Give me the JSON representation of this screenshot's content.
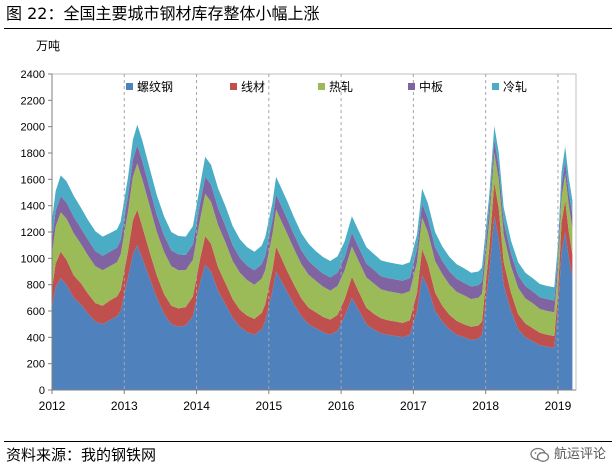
{
  "figure": {
    "title": "图 22：全国主要城市钢材库存整体小幅上涨",
    "source": "资料来源：我的钢铁网",
    "watermark": "航运评论",
    "watermark_icon": "wechat-icon"
  },
  "chart_data": {
    "type": "area",
    "stacked": true,
    "title": "",
    "unit": "万吨",
    "xlabel": "",
    "ylabel": "万吨",
    "ylim": [
      0,
      2400
    ],
    "yticks": [
      0,
      200,
      400,
      600,
      800,
      1000,
      1200,
      1400,
      1600,
      1800,
      2000,
      2200,
      2400
    ],
    "xlim": [
      2012.0,
      2019.25
    ],
    "xticks": [
      2012,
      2013,
      2014,
      2015,
      2016,
      2017,
      2018,
      2019
    ],
    "xtick_labels": [
      "2012",
      "2013",
      "2014",
      "2015",
      "2016",
      "2017",
      "2018",
      "2019"
    ],
    "grid": "vertical-dashed-at-year-ticks",
    "legend": "top-inside",
    "x": [
      2012.0,
      2012.05,
      2012.12,
      2012.2,
      2012.3,
      2012.4,
      2012.5,
      2012.6,
      2012.7,
      2012.8,
      2012.9,
      2012.95,
      2013.05,
      2013.12,
      2013.18,
      2013.25,
      2013.35,
      2013.45,
      2013.55,
      2013.65,
      2013.75,
      2013.85,
      2013.95,
      2014.05,
      2014.12,
      2014.2,
      2014.3,
      2014.4,
      2014.5,
      2014.6,
      2014.7,
      2014.8,
      2014.9,
      2014.95,
      2015.05,
      2015.1,
      2015.15,
      2015.25,
      2015.35,
      2015.45,
      2015.55,
      2015.65,
      2015.75,
      2015.85,
      2015.95,
      2016.05,
      2016.15,
      2016.25,
      2016.35,
      2016.45,
      2016.55,
      2016.65,
      2016.75,
      2016.85,
      2016.95,
      2017.05,
      2017.12,
      2017.2,
      2017.3,
      2017.4,
      2017.5,
      2017.6,
      2017.7,
      2017.8,
      2017.9,
      2017.95,
      2018.05,
      2018.12,
      2018.18,
      2018.25,
      2018.35,
      2018.45,
      2018.55,
      2018.65,
      2018.75,
      2018.85,
      2018.95,
      2019.0,
      2019.05,
      2019.1,
      2019.15,
      2019.2
    ],
    "series": [
      {
        "name": "螺纹钢",
        "color": "#4f81bd",
        "values": [
          620,
          780,
          850,
          800,
          700,
          650,
          580,
          520,
          500,
          530,
          560,
          600,
          850,
          1030,
          1100,
          1000,
          850,
          700,
          580,
          500,
          480,
          490,
          560,
          820,
          950,
          900,
          750,
          650,
          550,
          480,
          440,
          420,
          460,
          520,
          750,
          900,
          850,
          750,
          650,
          560,
          500,
          470,
          440,
          420,
          450,
          560,
          700,
          600,
          500,
          460,
          430,
          420,
          410,
          400,
          420,
          600,
          870,
          780,
          600,
          520,
          460,
          420,
          400,
          380,
          390,
          420,
          900,
          1320,
          1150,
          800,
          600,
          460,
          400,
          370,
          340,
          330,
          320,
          600,
          1050,
          1200,
          1000,
          860
        ]
      },
      {
        "name": "线材",
        "color": "#c0504d",
        "values": [
          150,
          180,
          200,
          190,
          170,
          160,
          150,
          140,
          140,
          150,
          150,
          160,
          200,
          260,
          270,
          240,
          200,
          170,
          150,
          140,
          140,
          140,
          150,
          180,
          220,
          210,
          180,
          160,
          140,
          130,
          125,
          120,
          125,
          130,
          160,
          190,
          180,
          160,
          150,
          135,
          125,
          120,
          115,
          115,
          120,
          130,
          160,
          140,
          125,
          120,
          115,
          110,
          110,
          110,
          110,
          140,
          200,
          180,
          140,
          120,
          110,
          105,
          100,
          100,
          100,
          100,
          180,
          260,
          230,
          170,
          140,
          115,
          105,
          100,
          95,
          90,
          90,
          130,
          220,
          240,
          200,
          170
        ]
      },
      {
        "name": "热轧",
        "color": "#9bbb59",
        "values": [
          260,
          280,
          300,
          310,
          320,
          300,
          290,
          280,
          270,
          260,
          260,
          270,
          300,
          330,
          350,
          360,
          350,
          330,
          320,
          300,
          290,
          280,
          280,
          300,
          320,
          320,
          320,
          310,
          290,
          280,
          270,
          260,
          260,
          260,
          270,
          280,
          280,
          280,
          270,
          260,
          250,
          240,
          230,
          220,
          220,
          220,
          230,
          230,
          230,
          230,
          220,
          220,
          220,
          220,
          220,
          230,
          240,
          240,
          240,
          240,
          230,
          220,
          220,
          210,
          210,
          210,
          210,
          220,
          220,
          210,
          200,
          200,
          190,
          190,
          180,
          180,
          180,
          180,
          190,
          200,
          200,
          200
        ]
      },
      {
        "name": "中板",
        "color": "#8064a2",
        "values": [
          110,
          120,
          120,
          125,
          125,
          120,
          120,
          115,
          110,
          110,
          110,
          110,
          120,
          130,
          140,
          140,
          135,
          130,
          125,
          120,
          120,
          115,
          115,
          120,
          130,
          130,
          130,
          125,
          120,
          115,
          110,
          110,
          110,
          110,
          110,
          115,
          115,
          115,
          110,
          105,
          105,
          100,
          100,
          100,
          100,
          100,
          105,
          105,
          105,
          105,
          100,
          100,
          100,
          100,
          100,
          100,
          105,
          105,
          105,
          100,
          100,
          100,
          95,
          95,
          95,
          95,
          95,
          100,
          100,
          100,
          95,
          95,
          95,
          90,
          90,
          90,
          90,
          90,
          95,
          100,
          100,
          100
        ]
      },
      {
        "name": "冷轧",
        "color": "#4bacc6",
        "values": [
          150,
          150,
          160,
          160,
          160,
          155,
          150,
          150,
          145,
          140,
          140,
          140,
          140,
          150,
          155,
          155,
          150,
          150,
          145,
          140,
          140,
          140,
          140,
          140,
          150,
          150,
          150,
          150,
          145,
          140,
          140,
          140,
          140,
          140,
          130,
          135,
          135,
          135,
          130,
          130,
          130,
          125,
          125,
          125,
          125,
          120,
          125,
          125,
          125,
          120,
          120,
          120,
          120,
          120,
          120,
          110,
          115,
          115,
          115,
          110,
          110,
          110,
          110,
          105,
          105,
          105,
          100,
          105,
          105,
          105,
          100,
          100,
          100,
          100,
          100,
          100,
          100,
          100,
          100,
          110,
          110,
          110
        ]
      }
    ]
  }
}
